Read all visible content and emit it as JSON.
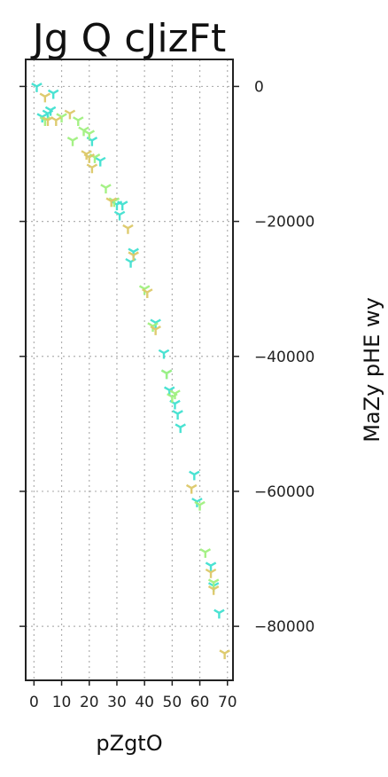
{
  "chart_data": {
    "type": "scatter",
    "title": "Jg Q cJizFt",
    "xlabel": "pZgtO",
    "ylabel": "MaZy pHE wy",
    "xlim": [
      -3,
      72
    ],
    "ylim": [
      -88000,
      4000
    ],
    "xticks": [
      0,
      10,
      20,
      30,
      40,
      50,
      60,
      70
    ],
    "yticks": [
      0,
      -20000,
      -40000,
      -60000,
      -80000
    ],
    "ytick_labels": [
      "0",
      "−20000",
      "−40000",
      "−60000",
      "−80000"
    ],
    "y_axis_side": "right",
    "grid": true,
    "marker": "tri_down",
    "series": [
      {
        "color": "#40e0d0",
        "points": [
          [
            1,
            0
          ],
          [
            3,
            -4500
          ],
          [
            5,
            -4000
          ],
          [
            6,
            -3500
          ],
          [
            7,
            -1000
          ],
          [
            21,
            -8000
          ],
          [
            24,
            -11000
          ],
          [
            30,
            -17500
          ],
          [
            31,
            -19000
          ],
          [
            32,
            -17500
          ],
          [
            35,
            -26000
          ],
          [
            36,
            -24500
          ],
          [
            44,
            -35000
          ],
          [
            47,
            -39500
          ],
          [
            48,
            -42500
          ],
          [
            49,
            -45000
          ],
          [
            51,
            -47000
          ],
          [
            52,
            -48500
          ],
          [
            53,
            -50500
          ],
          [
            58,
            -57500
          ],
          [
            59,
            -61500
          ],
          [
            64,
            -71000
          ],
          [
            65,
            -74000
          ],
          [
            67,
            -78000
          ]
        ]
      },
      {
        "color": "#a0f080",
        "points": [
          [
            4,
            -5000
          ],
          [
            10,
            -4500
          ],
          [
            14,
            -8000
          ],
          [
            16,
            -5000
          ],
          [
            18,
            -6500
          ],
          [
            20,
            -7000
          ],
          [
            22,
            -10500
          ],
          [
            26,
            -15000
          ],
          [
            29,
            -17000
          ],
          [
            40,
            -30000
          ],
          [
            43,
            -35500
          ],
          [
            48,
            -42500
          ],
          [
            50,
            -46000
          ],
          [
            51,
            -45500
          ],
          [
            60,
            -62000
          ],
          [
            62,
            -69000
          ],
          [
            65,
            -73500
          ]
        ]
      },
      {
        "color": "#dcc868",
        "points": [
          [
            4,
            -1500
          ],
          [
            5,
            -5000
          ],
          [
            8,
            -5000
          ],
          [
            13,
            -4000
          ],
          [
            19,
            -10000
          ],
          [
            20,
            -10500
          ],
          [
            21,
            -12000
          ],
          [
            28,
            -17000
          ],
          [
            34,
            -21000
          ],
          [
            36,
            -25000
          ],
          [
            41,
            -30500
          ],
          [
            44,
            -36000
          ],
          [
            57,
            -59500
          ],
          [
            64,
            -72000
          ],
          [
            65,
            -74500
          ],
          [
            69,
            -84000
          ]
        ]
      }
    ]
  }
}
